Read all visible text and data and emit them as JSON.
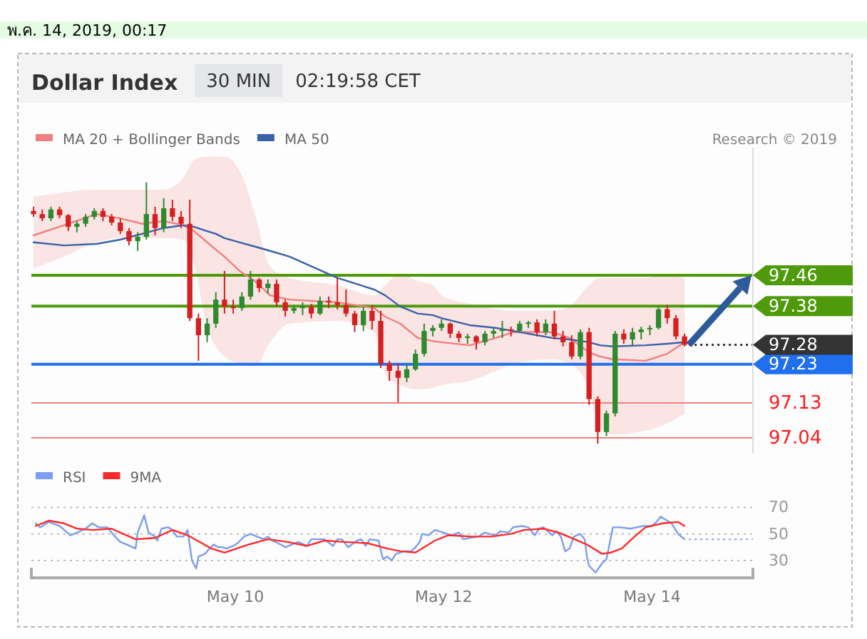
{
  "chart_data": [
    {
      "type": "candlestick",
      "title": "Dollar Index",
      "subtitle": "30 MIN",
      "annotations": [
        "พ.ค. 14, 2019, 00:17",
        "02:19:58 CET",
        "Research © 2019"
      ],
      "x": [
        "2019-05-08T01:30",
        "2019-05-08T03:30",
        "2019-05-08T05:30",
        "2019-05-08T07:30",
        "2019-05-08T09:30",
        "2019-05-08T11:30",
        "2019-05-08T13:30",
        "2019-05-08T15:30",
        "2019-05-08T17:30",
        "2019-05-08T19:30",
        "2019-05-08T21:30",
        "2019-05-08T23:30",
        "2019-05-09T01:30",
        "2019-05-09T03:30",
        "2019-05-09T05:30",
        "2019-05-09T07:30",
        "2019-05-09T09:30",
        "2019-05-09T11:30",
        "2019-05-09T13:30",
        "2019-05-09T15:30",
        "2019-05-09T17:30",
        "2019-05-09T19:30",
        "2019-05-09T21:30",
        "2019-05-09T23:30",
        "2019-05-10T01:30",
        "2019-05-10T03:30",
        "2019-05-10T05:30",
        "2019-05-10T07:30",
        "2019-05-10T09:30",
        "2019-05-10T11:30",
        "2019-05-10T13:30",
        "2019-05-10T15:30",
        "2019-05-10T17:30",
        "2019-05-10T19:30",
        "2019-05-10T21:30",
        "2019-05-10T23:30",
        "2019-05-11T01:30",
        "2019-05-11T03:30",
        "2019-05-11T05:30",
        "2019-05-11T07:30",
        "2019-05-11T09:30",
        "2019-05-11T11:30",
        "2019-05-11T13:30",
        "2019-05-11T15:30",
        "2019-05-11T17:30",
        "2019-05-11T19:30",
        "2019-05-11T21:30",
        "2019-05-11T23:30",
        "2019-05-12T01:30",
        "2019-05-12T03:30",
        "2019-05-12T05:30",
        "2019-05-12T07:30",
        "2019-05-12T09:30",
        "2019-05-12T11:30",
        "2019-05-12T13:30",
        "2019-05-12T15:30",
        "2019-05-12T17:30",
        "2019-05-12T19:30",
        "2019-05-12T21:30",
        "2019-05-12T23:30",
        "2019-05-13T01:30",
        "2019-05-13T03:30",
        "2019-05-13T05:30",
        "2019-05-13T07:30",
        "2019-05-13T09:30",
        "2019-05-13T11:30",
        "2019-05-13T13:30",
        "2019-05-13T15:30",
        "2019-05-13T17:30",
        "2019-05-13T19:30",
        "2019-05-13T21:30",
        "2019-05-13T23:30",
        "2019-05-14T01:30",
        "2019-05-14T03:30",
        "2019-05-14T05:30",
        "2019-05-14T07:30"
      ],
      "ohlc": [
        [
          97.626,
          97.637,
          97.611,
          97.618
        ],
        [
          97.618,
          97.63,
          97.6,
          97.607
        ],
        [
          97.607,
          97.637,
          97.6,
          97.63
        ],
        [
          97.63,
          97.637,
          97.607,
          97.615
        ],
        [
          97.615,
          97.618,
          97.574,
          97.585
        ],
        [
          97.585,
          97.6,
          97.571,
          97.593
        ],
        [
          97.593,
          97.618,
          97.585,
          97.611
        ],
        [
          97.611,
          97.633,
          97.604,
          97.626
        ],
        [
          97.626,
          97.633,
          97.6,
          97.611
        ],
        [
          97.611,
          97.618,
          97.589,
          97.596
        ],
        [
          97.596,
          97.607,
          97.567,
          97.574
        ],
        [
          97.574,
          97.582,
          97.537,
          97.548
        ],
        [
          97.548,
          97.571,
          97.523,
          97.559
        ],
        [
          97.559,
          97.7,
          97.552,
          97.618
        ],
        [
          97.618,
          97.637,
          97.563,
          97.582
        ],
        [
          97.582,
          97.659,
          97.571,
          97.633
        ],
        [
          97.633,
          97.655,
          97.6,
          97.611
        ],
        [
          97.611,
          97.626,
          97.582,
          97.593
        ],
        [
          97.593,
          97.655,
          97.342,
          97.349
        ],
        [
          97.349,
          97.361,
          97.239,
          97.305
        ],
        [
          97.305,
          97.349,
          97.287,
          97.335
        ],
        [
          97.335,
          97.416,
          97.324,
          97.397
        ],
        [
          97.397,
          97.471,
          97.361,
          97.379
        ],
        [
          97.379,
          97.397,
          97.361,
          97.375
        ],
        [
          97.375,
          97.416,
          97.368,
          97.405
        ],
        [
          97.405,
          97.471,
          97.397,
          97.449
        ],
        [
          97.449,
          97.453,
          97.416,
          97.427
        ],
        [
          97.427,
          97.449,
          97.412,
          97.438
        ],
        [
          97.438,
          97.449,
          97.379,
          97.39
        ],
        [
          97.39,
          97.397,
          97.353,
          97.368
        ],
        [
          97.368,
          97.383,
          97.361,
          97.375
        ],
        [
          97.375,
          97.39,
          97.357,
          97.379
        ],
        [
          97.379,
          97.386,
          97.349,
          97.361
        ],
        [
          97.361,
          97.405,
          97.357,
          97.394
        ],
        [
          97.394,
          97.405,
          97.375,
          97.39
        ],
        [
          97.39,
          97.453,
          97.372,
          97.383
        ],
        [
          97.383,
          97.423,
          97.353,
          97.361
        ],
        [
          97.361,
          97.368,
          97.313,
          97.331
        ],
        [
          97.331,
          97.379,
          97.316,
          97.368
        ],
        [
          97.368,
          97.383,
          97.32,
          97.342
        ],
        [
          97.342,
          97.368,
          97.22,
          97.232
        ],
        [
          97.232,
          97.239,
          97.187,
          97.213
        ],
        [
          97.213,
          97.232,
          97.132,
          97.195
        ],
        [
          97.195,
          97.232,
          97.184,
          97.217
        ],
        [
          97.217,
          97.268,
          97.213,
          97.257
        ],
        [
          97.257,
          97.335,
          97.25,
          97.316
        ],
        [
          97.316,
          97.331,
          97.302,
          97.324
        ],
        [
          97.324,
          97.346,
          97.316,
          97.335
        ],
        [
          97.335,
          97.338,
          97.298,
          97.309
        ],
        [
          97.309,
          97.316,
          97.287,
          97.298
        ],
        [
          97.298,
          97.309,
          97.283,
          97.302
        ],
        [
          97.302,
          97.305,
          97.268,
          97.287
        ],
        [
          97.287,
          97.316,
          97.279,
          97.309
        ],
        [
          97.309,
          97.324,
          97.298,
          97.316
        ],
        [
          97.316,
          97.342,
          97.298,
          97.32
        ],
        [
          97.32,
          97.327,
          97.302,
          97.316
        ],
        [
          97.316,
          97.342,
          97.313,
          97.335
        ],
        [
          97.335,
          97.342,
          97.324,
          97.338
        ],
        [
          97.338,
          97.346,
          97.302,
          97.313
        ],
        [
          97.313,
          97.346,
          97.305,
          97.335
        ],
        [
          97.335,
          97.368,
          97.294,
          97.302
        ],
        [
          97.302,
          97.316,
          97.276,
          97.287
        ],
        [
          97.287,
          97.305,
          97.243,
          97.25
        ],
        [
          97.25,
          97.32,
          97.243,
          97.313
        ],
        [
          97.313,
          97.324,
          97.125,
          97.14
        ],
        [
          97.14,
          97.147,
          97.025,
          97.055
        ],
        [
          97.055,
          97.11,
          97.044,
          97.103
        ],
        [
          97.103,
          97.316,
          97.095,
          97.309
        ],
        [
          97.309,
          97.32,
          97.283,
          97.294
        ],
        [
          97.294,
          97.324,
          97.279,
          97.313
        ],
        [
          97.313,
          97.327,
          97.294,
          97.32
        ],
        [
          97.32,
          97.331,
          97.305,
          97.324
        ],
        [
          97.324,
          97.379,
          97.32,
          97.372
        ],
        [
          97.372,
          97.383,
          97.335,
          97.349
        ],
        [
          97.349,
          97.357,
          97.294,
          97.302
        ],
        [
          97.302,
          97.309,
          97.276,
          97.28
        ]
      ],
      "colors": [
        "#d42020",
        "#d42020",
        "#2f8a2f",
        "#d42020",
        "#d42020",
        "#2f8a2f",
        "#2f8a2f",
        "#2f8a2f",
        "#d42020",
        "#d42020",
        "#d42020",
        "#d42020",
        "#2f8a2f",
        "#2f8a2f",
        "#d42020",
        "#2f8a2f",
        "#d42020",
        "#d42020",
        "#d42020",
        "#d42020",
        "#2f8a2f",
        "#2f8a2f",
        "#d42020",
        "#d42020",
        "#2f8a2f",
        "#2f8a2f",
        "#d42020",
        "#2f8a2f",
        "#d42020",
        "#d42020",
        "#2f8a2f",
        "#2f8a2f",
        "#d42020",
        "#2f8a2f",
        "#d42020",
        "#d42020",
        "#d42020",
        "#d42020",
        "#2f8a2f",
        "#d42020",
        "#d42020",
        "#d42020",
        "#d42020",
        "#2f8a2f",
        "#2f8a2f",
        "#2f8a2f",
        "#2f8a2f",
        "#2f8a2f",
        "#d42020",
        "#d42020",
        "#2f8a2f",
        "#d42020",
        "#2f8a2f",
        "#2f8a2f",
        "#2f8a2f",
        "#d42020",
        "#2f8a2f",
        "#2f8a2f",
        "#d42020",
        "#2f8a2f",
        "#d42020",
        "#d42020",
        "#d42020",
        "#2f8a2f",
        "#d42020",
        "#d42020",
        "#2f8a2f",
        "#2f8a2f",
        "#d42020",
        "#2f8a2f",
        "#2f8a2f",
        "#2f8a2f",
        "#2f8a2f",
        "#d42020",
        "#d42020",
        "#d42020"
      ],
      "series": [
        {
          "name": "MA 20 + Bollinger Bands",
          "type": "line",
          "color": "#f08080",
          "x": [
            "2019-05-08T01:30",
            "2019-05-08T08:30",
            "2019-05-08T16:00",
            "2019-05-08T21:30",
            "2019-05-09T02:30",
            "2019-05-09T07:30",
            "2019-05-09T12:00",
            "2019-05-09T14:30",
            "2019-05-09T17:30",
            "2019-05-09T19:30",
            "2019-05-09T21:30",
            "2019-05-10T01:00",
            "2019-05-10T04:30",
            "2019-05-10T08:00",
            "2019-05-10T12:30",
            "2019-05-10T23:30",
            "2019-05-11T08:00",
            "2019-05-11T10:30",
            "2019-05-11T14:00",
            "2019-05-11T18:00",
            "2019-05-11T21:30",
            "2019-05-11T23:30",
            "2019-05-12T06:00",
            "2019-05-12T12:00",
            "2019-05-12T16:00",
            "2019-05-13T01:00",
            "2019-05-13T05:00",
            "2019-05-13T09:30",
            "2019-05-13T12:00",
            "2019-05-13T15:00",
            "2019-05-13T22:30",
            "2019-05-14T03:30",
            "2019-05-14T07:30"
          ],
          "values": [
            97.563,
            97.589,
            97.618,
            97.607,
            97.593,
            97.6,
            97.589,
            97.574,
            97.545,
            97.526,
            97.508,
            97.471,
            97.445,
            97.408,
            97.397,
            97.39,
            97.375,
            97.353,
            97.335,
            97.298,
            97.29,
            97.287,
            97.279,
            97.298,
            97.313,
            97.313,
            97.298,
            97.261,
            97.25,
            97.243,
            97.239,
            97.257,
            97.287
          ],
          "upper": [
            97.663,
            97.674,
            97.681,
            97.681,
            97.681,
            97.681,
            97.711,
            97.758,
            97.766,
            97.766,
            97.766,
            97.729,
            97.618,
            97.482,
            97.453,
            97.434,
            97.408,
            97.434,
            97.464,
            97.445,
            97.434,
            97.408,
            97.386,
            97.372,
            97.368,
            97.368,
            97.379,
            97.434,
            97.453,
            97.453,
            97.453,
            97.464,
            97.453
          ],
          "lower": [
            97.478,
            97.508,
            97.545,
            97.556,
            97.556,
            97.556,
            97.552,
            97.489,
            97.324,
            97.276,
            97.25,
            97.232,
            97.224,
            97.287,
            97.335,
            97.342,
            97.313,
            97.206,
            97.176,
            97.165,
            97.169,
            97.176,
            97.187,
            97.213,
            97.232,
            97.243,
            97.232,
            97.165,
            97.066,
            97.048,
            97.058,
            97.077,
            97.103
          ]
        },
        {
          "name": "MA 50",
          "type": "line",
          "color": "#3a62a7",
          "x": [
            "2019-05-08T01:30",
            "2019-05-08T08:30",
            "2019-05-08T16:00",
            "2019-05-08T21:30",
            "2019-05-09T02:30",
            "2019-05-09T07:30",
            "2019-05-09T12:00",
            "2019-05-09T14:30",
            "2019-05-09T17:30",
            "2019-05-09T19:30",
            "2019-05-09T21:30",
            "2019-05-10T01:00",
            "2019-05-10T04:30",
            "2019-05-10T08:00",
            "2019-05-10T12:30",
            "2019-05-10T23:30",
            "2019-05-11T08:00",
            "2019-05-11T10:30",
            "2019-05-11T14:00",
            "2019-05-11T18:00",
            "2019-05-11T21:30",
            "2019-05-11T23:30",
            "2019-05-12T06:00",
            "2019-05-12T12:00",
            "2019-05-12T16:00",
            "2019-05-13T01:00",
            "2019-05-13T05:00",
            "2019-05-13T09:30",
            "2019-05-13T12:00",
            "2019-05-13T15:00",
            "2019-05-13T22:30",
            "2019-05-14T03:30",
            "2019-05-14T07:30"
          ],
          "values": [
            97.545,
            97.537,
            97.541,
            97.552,
            97.567,
            97.582,
            97.589,
            97.585,
            97.574,
            97.567,
            97.556,
            97.545,
            97.534,
            97.523,
            97.508,
            97.453,
            97.423,
            97.408,
            97.379,
            97.361,
            97.357,
            97.349,
            97.331,
            97.324,
            97.316,
            97.298,
            97.294,
            97.287,
            97.279,
            97.276,
            97.279,
            97.283,
            97.287
          ]
        }
      ],
      "xlim": [
        "2019-05-08T01:00",
        "2019-05-14T23:15"
      ],
      "ylim": [
        97.0,
        97.79
      ],
      "yticks": [
        97.04,
        97.13,
        97.23,
        97.28,
        97.38,
        97.46
      ],
      "ref_lines": [
        {
          "axis": "y",
          "value": 97.46,
          "color": "#4f9a0a"
        },
        {
          "axis": "y",
          "value": 97.38,
          "color": "#4f9a0a"
        },
        {
          "axis": "y",
          "value": 97.28,
          "color": "#333333",
          "line_style": "dotted"
        },
        {
          "axis": "y",
          "value": 97.23,
          "color": "#1f6fef"
        },
        {
          "axis": "y",
          "value": 97.13,
          "color": "#f08080"
        },
        {
          "axis": "y",
          "value": 97.04,
          "color": "#f08080"
        }
      ],
      "legend": "top left",
      "tick_labels": "y"
    },
    {
      "type": "line",
      "series": [
        {
          "name": "RSI",
          "color": "#7b9ef0",
          "x": [
            "2019-05-08T02:00",
            "2019-05-08T03:00",
            "2019-05-08T05:00",
            "2019-05-08T07:30",
            "2019-05-08T10:00",
            "2019-05-08T11:30",
            "2019-05-08T13:30",
            "2019-05-08T15:00",
            "2019-05-08T16:30",
            "2019-05-08T18:30",
            "2019-05-08T20:00",
            "2019-05-08T21:30",
            "2019-05-08T23:00",
            "2019-05-09T01:00",
            "2019-05-09T01:30",
            "2019-05-09T03:00",
            "2019-05-09T04:00",
            "2019-05-09T05:30",
            "2019-05-09T06:00",
            "2019-05-09T07:00",
            "2019-05-09T08:30",
            "2019-05-09T09:30",
            "2019-05-09T10:30",
            "2019-05-09T12:00",
            "2019-05-09T13:00",
            "2019-05-09T14:00",
            "2019-05-09T15:00",
            "2019-05-09T15:30",
            "2019-05-09T17:00",
            "2019-05-09T18:00",
            "2019-05-09T19:00",
            "2019-05-09T20:00",
            "2019-05-09T21:00",
            "2019-05-09T22:00",
            "2019-05-09T23:30",
            "2019-05-10T00:30",
            "2019-05-10T02:00",
            "2019-05-10T03:30",
            "2019-05-10T05:00",
            "2019-05-10T06:30",
            "2019-05-10T07:30",
            "2019-05-10T08:30",
            "2019-05-10T10:30",
            "2019-05-10T11:30",
            "2019-05-10T13:00",
            "2019-05-10T14:30",
            "2019-05-10T16:30",
            "2019-05-10T17:30",
            "2019-05-10T19:00",
            "2019-05-10T20:30",
            "2019-05-10T22:30",
            "2019-05-10T23:30",
            "2019-05-11T00:30",
            "2019-05-11T02:00",
            "2019-05-11T04:00",
            "2019-05-11T05:00",
            "2019-05-11T06:00",
            "2019-05-11T07:00",
            "2019-05-11T09:00",
            "2019-05-11T10:00",
            "2019-05-11T11:00",
            "2019-05-11T12:00",
            "2019-05-11T13:00",
            "2019-05-11T15:00",
            "2019-05-11T16:30",
            "2019-05-11T17:30",
            "2019-05-11T18:30",
            "2019-05-11T19:00",
            "2019-05-11T20:30",
            "2019-05-11T22:00",
            "2019-05-12T00:00",
            "2019-05-12T01:30",
            "2019-05-12T03:30",
            "2019-05-12T04:30",
            "2019-05-12T06:00",
            "2019-05-12T08:00",
            "2019-05-12T09:30",
            "2019-05-12T10:30",
            "2019-05-12T12:00",
            "2019-05-12T13:00",
            "2019-05-12T15:00",
            "2019-05-12T16:00",
            "2019-05-12T18:00",
            "2019-05-12T19:30",
            "2019-05-12T21:00",
            "2019-05-12T22:00",
            "2019-05-12T23:00",
            "2019-05-13T01:00",
            "2019-05-13T02:00",
            "2019-05-13T03:00",
            "2019-05-13T04:00",
            "2019-05-13T05:00",
            "2019-05-13T06:00",
            "2019-05-13T07:30",
            "2019-05-13T08:30",
            "2019-05-13T09:00",
            "2019-05-13T09:30",
            "2019-05-13T11:00",
            "2019-05-13T12:30",
            "2019-05-13T13:30",
            "2019-05-13T15:00",
            "2019-05-13T16:30",
            "2019-05-13T19:00",
            "2019-05-13T20:30",
            "2019-05-13T22:00",
            "2019-05-14T00:00",
            "2019-05-14T01:00",
            "2019-05-14T02:00",
            "2019-05-14T03:30",
            "2019-05-14T04:30",
            "2019-05-14T06:00",
            "2019-05-14T07:30"
          ],
          "values": [
            58,
            55,
            59,
            56,
            49,
            51,
            54,
            58,
            55,
            55,
            49,
            44,
            42,
            39,
            51,
            64,
            51,
            48,
            45,
            54,
            55,
            53,
            48,
            48,
            53,
            30,
            24,
            33,
            35,
            39,
            42,
            40,
            40,
            39,
            41,
            43,
            48,
            50,
            48,
            46,
            48,
            45,
            42,
            40,
            42,
            44,
            41,
            46,
            46,
            46,
            41,
            46,
            46,
            40,
            45,
            46,
            41,
            46,
            45,
            31,
            33,
            30,
            35,
            37,
            37,
            40,
            44,
            50,
            49,
            53,
            51,
            49,
            51,
            46,
            47,
            48,
            51,
            50,
            49,
            52,
            51,
            55,
            56,
            55,
            49,
            54,
            55,
            49,
            52,
            48,
            37,
            39,
            48,
            50,
            46,
            33,
            26,
            21,
            28,
            31,
            55,
            55,
            54,
            55,
            56,
            56,
            59,
            63,
            60,
            58,
            50,
            46
          ]
        },
        {
          "name": "9MA",
          "color": "#ff2a2a",
          "x": [
            "2019-05-08T02:00",
            "2019-05-08T05:00",
            "2019-05-08T08:30",
            "2019-05-08T11:30",
            "2019-05-08T15:00",
            "2019-05-08T19:30",
            "2019-05-08T21:30",
            "2019-05-09T01:00",
            "2019-05-09T05:30",
            "2019-05-09T09:30",
            "2019-05-09T13:00",
            "2019-05-09T18:30",
            "2019-05-09T21:30",
            "2019-05-10T03:00",
            "2019-05-10T07:30",
            "2019-05-10T12:00",
            "2019-05-10T16:30",
            "2019-05-10T20:30",
            "2019-05-11T01:00",
            "2019-05-11T06:30",
            "2019-05-11T11:00",
            "2019-05-11T14:00",
            "2019-05-11T17:30",
            "2019-05-11T22:00",
            "2019-05-12T01:00",
            "2019-05-12T06:30",
            "2019-05-12T11:00",
            "2019-05-12T15:30",
            "2019-05-12T18:30",
            "2019-05-12T23:00",
            "2019-05-13T02:30",
            "2019-05-13T05:30",
            "2019-05-13T09:00",
            "2019-05-13T12:30",
            "2019-05-13T14:30",
            "2019-05-13T17:00",
            "2019-05-13T20:00",
            "2019-05-13T22:30",
            "2019-05-14T02:30",
            "2019-05-14T06:00",
            "2019-05-14T07:30"
          ],
          "values": [
            56,
            60,
            58,
            54,
            53,
            54,
            51,
            46,
            47,
            53,
            49,
            39,
            36,
            42,
            46,
            44,
            41,
            45,
            44,
            43,
            39,
            37,
            36,
            45,
            49,
            48,
            48,
            50,
            53,
            54,
            51,
            47,
            42,
            35,
            36,
            39,
            48,
            55,
            58,
            59,
            56
          ]
        }
      ],
      "xlim": [
        "2019-05-08T01:00",
        "2019-05-14T23:15"
      ],
      "xticks": [
        {
          "value": "2019-05-10",
          "label": "May 10"
        },
        {
          "value": "2019-05-12",
          "label": "May 12"
        },
        {
          "value": "2019-05-14",
          "label": "May 14"
        }
      ],
      "ylim": [
        17,
        70
      ],
      "yticks": [
        30,
        50,
        70
      ],
      "grid": "y",
      "legend": "top left",
      "ref_lines": [
        {
          "axis": "y",
          "value": 46,
          "color": "#7b9ef0",
          "line_style": "dotted"
        }
      ]
    }
  ]
}
